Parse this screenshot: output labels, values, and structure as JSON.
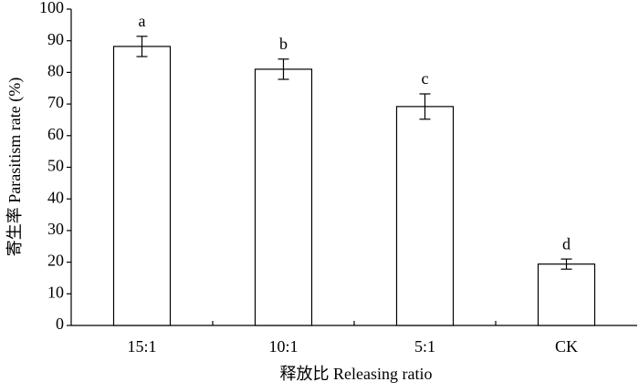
{
  "chart_data": {
    "type": "bar",
    "x_label": "释放比 Releasing ratio",
    "y_label": "寄生率 Parasitism rate (%)",
    "categories": [
      "15:1",
      "10:1",
      "5:1",
      "CK"
    ],
    "values": [
      88.2,
      81.0,
      69.2,
      19.4
    ],
    "errors": [
      3.2,
      3.2,
      4.0,
      1.6
    ],
    "significance_labels": [
      "a",
      "b",
      "c",
      "d"
    ],
    "color": "#ffffff",
    "ylim": [
      0,
      100
    ],
    "yticks": [
      0,
      10,
      20,
      30,
      40,
      50,
      60,
      70,
      80,
      90,
      100
    ],
    "grid": false
  }
}
